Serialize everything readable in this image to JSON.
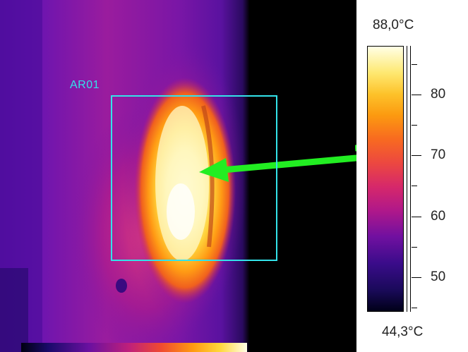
{
  "thermal_image": {
    "roi": {
      "label": "AR01",
      "color": "#33e3ea"
    },
    "arrow_color": "#22ee22"
  },
  "legend": {
    "max_label": "88,0°C",
    "min_label": "44,3°C",
    "max_value": 88.0,
    "min_value": 44.3,
    "tick_labels": [
      "80",
      "70",
      "60",
      "50"
    ]
  }
}
